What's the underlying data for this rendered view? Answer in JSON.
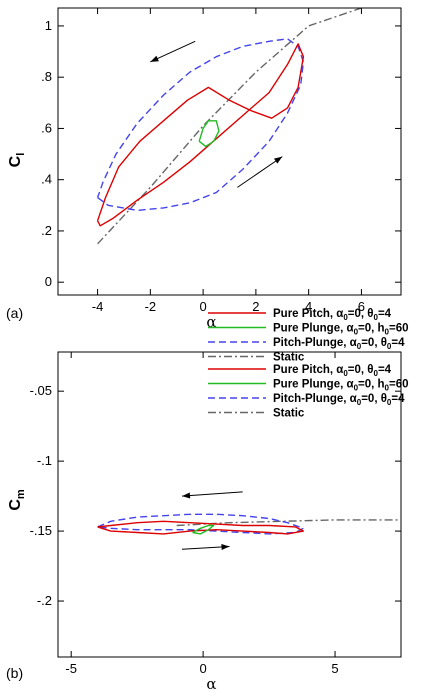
{
  "chart_data": [
    {
      "type": "line",
      "panel_label": "(a)",
      "xlabel": "α",
      "ylabel_main": "C",
      "ylabel_sub": "l",
      "xlim": [
        -5.5,
        7.5
      ],
      "ylim": [
        -0.05,
        1.07
      ],
      "xticks": [
        -4,
        -2,
        0,
        2,
        4,
        6
      ],
      "yticks": [
        0,
        0.2,
        0.4,
        0.6,
        0.8,
        1
      ],
      "legend_placement": "bottom-right",
      "series": [
        {
          "name": "Pure Pitch, α0=0, θ0=4",
          "legend": {
            "main": "Pure Pitch, α",
            "s1": "0",
            "mid": "=0, θ",
            "s2": "0",
            "end": "=4"
          },
          "color": "#dd0000",
          "dash": "solid",
          "x": [
            -4,
            -3.9,
            -3.4,
            -2.5,
            -1.5,
            -0.5,
            0.5,
            1.5,
            2.5,
            3.2,
            3.6,
            3.8,
            3.6,
            3.2,
            2.6,
            1.8,
            1.0,
            0.2,
            -0.6,
            -1.5,
            -2.4,
            -3.2,
            -3.7,
            -4
          ],
          "y": [
            0.24,
            0.22,
            0.25,
            0.32,
            0.39,
            0.47,
            0.56,
            0.65,
            0.74,
            0.85,
            0.93,
            0.88,
            0.76,
            0.68,
            0.64,
            0.67,
            0.71,
            0.76,
            0.71,
            0.63,
            0.55,
            0.45,
            0.33,
            0.24
          ]
        },
        {
          "name": "Pure Plunge, α0=0, h0=60",
          "legend": {
            "main": "Pure Plunge, α",
            "s1": "0",
            "mid": "=0, h",
            "s2": "0",
            "end": "=60"
          },
          "color": "#22bb22",
          "dash": "solid",
          "x": [
            -0.15,
            0.1,
            0.4,
            0.6,
            0.5,
            0.2,
            0.0,
            -0.15
          ],
          "y": [
            0.55,
            0.53,
            0.55,
            0.59,
            0.63,
            0.63,
            0.6,
            0.55
          ]
        },
        {
          "name": "Pitch-Plunge, α0=0, θ0=4",
          "legend": {
            "main": "Pitch-Plunge, α",
            "s1": "0",
            "mid": "=0, θ",
            "s2": "0",
            "end": "=4"
          },
          "color": "#4444ee",
          "dash": "long-dash",
          "x": [
            -4,
            -3.6,
            -2.5,
            -1.5,
            -0.5,
            0.5,
            1.5,
            2.5,
            3.2,
            3.7,
            3.8,
            3.6,
            3.2,
            2.5,
            1.5,
            0.5,
            -0.5,
            -1.5,
            -2.5,
            -3.3,
            -3.8,
            -4
          ],
          "y": [
            0.33,
            0.3,
            0.28,
            0.29,
            0.31,
            0.35,
            0.44,
            0.55,
            0.66,
            0.77,
            0.86,
            0.92,
            0.95,
            0.94,
            0.92,
            0.88,
            0.82,
            0.73,
            0.62,
            0.5,
            0.39,
            0.33
          ]
        },
        {
          "name": "Static",
          "legend": {
            "main": "Static",
            "s1": "",
            "mid": "",
            "s2": "",
            "end": ""
          },
          "color": "#666666",
          "dash": "dash-dot",
          "x": [
            -4,
            -2,
            0,
            2,
            4,
            6
          ],
          "y": [
            0.15,
            0.37,
            0.61,
            0.82,
            1.0,
            1.07
          ]
        }
      ]
    },
    {
      "type": "line",
      "panel_label": "(b)",
      "xlabel": "α",
      "ylabel_main": "C",
      "ylabel_sub": "m",
      "xlim": [
        -5.5,
        7.5
      ],
      "ylim": [
        -0.24,
        -0.022
      ],
      "xticks": [
        -5,
        0,
        5
      ],
      "yticks": [
        -0.05,
        -0.1,
        -0.15,
        -0.2
      ],
      "legend_placement": "top-right",
      "series": [
        {
          "name": "Pure Pitch, α0=0, θ0=4",
          "legend": {
            "main": "Pure Pitch, α",
            "s1": "0",
            "mid": "=0, θ",
            "s2": "0",
            "end": "=4"
          },
          "color": "#dd0000",
          "dash": "solid",
          "x": [
            -4,
            -3.5,
            -2.5,
            -1.5,
            -0.5,
            0.5,
            1.5,
            2.5,
            3.2,
            3.8,
            3.5,
            2.5,
            1.5,
            0.5,
            -0.5,
            -1.5,
            -2.5,
            -3.5,
            -4
          ],
          "y": [
            -0.147,
            -0.15,
            -0.151,
            -0.152,
            -0.15,
            -0.149,
            -0.15,
            -0.151,
            -0.152,
            -0.15,
            -0.147,
            -0.146,
            -0.146,
            -0.145,
            -0.144,
            -0.143,
            -0.144,
            -0.146,
            -0.147
          ]
        },
        {
          "name": "Pure Plunge, α0=0, h0=60",
          "legend": {
            "main": "Pure Plunge, α",
            "s1": "0",
            "mid": "=0, h",
            "s2": "0",
            "end": "=60"
          },
          "color": "#22bb22",
          "dash": "solid",
          "x": [
            -0.4,
            -0.1,
            0.2,
            0.4,
            0.2,
            -0.1,
            -0.4
          ],
          "y": [
            -0.151,
            -0.152,
            -0.149,
            -0.146,
            -0.146,
            -0.148,
            -0.151
          ]
        },
        {
          "name": "Pitch-Plunge, α0=0, θ0=4",
          "legend": {
            "main": "Pitch-Plunge, α",
            "s1": "0",
            "mid": "=0, θ",
            "s2": "0",
            "end": "=4"
          },
          "color": "#4444ee",
          "dash": "long-dash",
          "x": [
            -4,
            -3.5,
            -2.5,
            -1.5,
            -0.5,
            0.5,
            1.5,
            2.5,
            3.2,
            3.8,
            3.5,
            2.5,
            1.5,
            0.5,
            -0.5,
            -1.5,
            -2.5,
            -3.5,
            -4
          ],
          "y": [
            -0.147,
            -0.143,
            -0.14,
            -0.139,
            -0.138,
            -0.138,
            -0.139,
            -0.141,
            -0.144,
            -0.148,
            -0.151,
            -0.152,
            -0.151,
            -0.15,
            -0.149,
            -0.149,
            -0.149,
            -0.148,
            -0.147
          ]
        },
        {
          "name": "Static",
          "legend": {
            "main": "Static",
            "s1": "",
            "mid": "",
            "s2": "",
            "end": ""
          },
          "color": "#666666",
          "dash": "dash-dot",
          "x": [
            -1,
            1,
            3,
            5,
            7.5
          ],
          "y": [
            -0.146,
            -0.144,
            -0.143,
            -0.142,
            -0.142
          ]
        }
      ]
    }
  ]
}
